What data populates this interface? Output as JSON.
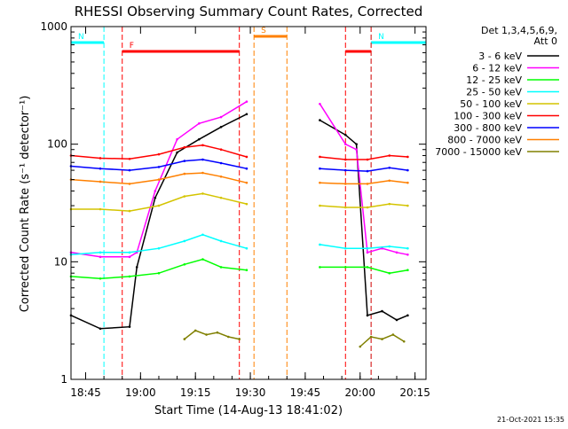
{
  "chart_data": {
    "type": "line",
    "title": "RHESSI Observing Summary Count Rates, Corrected",
    "xlabel": "Start Time (14-Aug-13 18:41:02)",
    "ylabel": "Corrected Count Rate (s⁻¹ detector⁻¹)",
    "yscale": "log",
    "ylim": [
      1,
      1000
    ],
    "xlim": [
      "18:41",
      "20:18"
    ],
    "x_ticks": [
      "18:45",
      "19:00",
      "19:15",
      "19:30",
      "19:45",
      "20:00",
      "20:15"
    ],
    "y_ticks": [
      "1",
      "10",
      "100",
      "1000"
    ],
    "legend_header": [
      "Det 1,3,4,5,6,9,",
      "Att 0"
    ],
    "legend_position": "right",
    "timestamp": "21-Oct-2021 15:35",
    "series": [
      {
        "name": "3 - 6 keV",
        "color": "#000000",
        "x": [
          "18:41",
          "18:49",
          "18:57",
          "18:59",
          "19:04",
          "19:10",
          "19:16",
          "19:22",
          "19:29",
          "19:49",
          "19:56",
          "19:59",
          "20:02",
          "20:06",
          "20:10",
          "20:13"
        ],
        "values": [
          3.5,
          2.7,
          2.8,
          9,
          35,
          85,
          110,
          140,
          180,
          160,
          120,
          100,
          3.5,
          3.8,
          3.2,
          3.5
        ]
      },
      {
        "name": "6 - 12 keV",
        "color": "#ff00ff",
        "x": [
          "18:41",
          "18:49",
          "18:57",
          "18:59",
          "19:04",
          "19:10",
          "19:16",
          "19:22",
          "19:29",
          "19:49",
          "19:56",
          "19:59",
          "20:02",
          "20:06",
          "20:10",
          "20:13"
        ],
        "values": [
          12,
          11,
          11,
          12,
          40,
          110,
          150,
          170,
          230,
          220,
          100,
          90,
          12,
          13,
          12,
          11.5
        ]
      },
      {
        "name": "12 - 25 keV",
        "color": "#00ff00",
        "x": [
          "18:41",
          "18:49",
          "18:57",
          "19:05",
          "19:12",
          "19:17",
          "19:22",
          "19:29",
          "19:49",
          "19:56",
          "20:02",
          "20:08",
          "20:13"
        ],
        "values": [
          7.5,
          7.2,
          7.5,
          8,
          9.5,
          10.5,
          9,
          8.5,
          9,
          9,
          9,
          8,
          8.5
        ]
      },
      {
        "name": "25 - 50 keV",
        "color": "#00ffff",
        "x": [
          "18:41",
          "18:49",
          "18:57",
          "19:05",
          "19:12",
          "19:17",
          "19:22",
          "19:29",
          "19:49",
          "19:56",
          "20:02",
          "20:08",
          "20:13"
        ],
        "values": [
          11.5,
          12,
          12,
          13,
          15,
          17,
          15,
          13,
          14,
          13,
          13,
          13.5,
          13
        ]
      },
      {
        "name": "50 - 100 keV",
        "color": "#d4c400",
        "x": [
          "18:41",
          "18:49",
          "18:57",
          "19:05",
          "19:12",
          "19:17",
          "19:22",
          "19:29",
          "19:49",
          "19:56",
          "20:02",
          "20:08",
          "20:13"
        ],
        "values": [
          28,
          28,
          27,
          30,
          36,
          38,
          35,
          31,
          30,
          29,
          29,
          31,
          30
        ]
      },
      {
        "name": "100 - 300 keV",
        "color": "#ff0000",
        "x": [
          "18:41",
          "18:49",
          "18:57",
          "19:05",
          "19:12",
          "19:17",
          "19:22",
          "19:29",
          "19:49",
          "19:56",
          "20:02",
          "20:08",
          "20:13"
        ],
        "values": [
          80,
          76,
          75,
          82,
          94,
          98,
          90,
          78,
          78,
          74,
          74,
          80,
          78
        ]
      },
      {
        "name": "300 - 800 keV",
        "color": "#0000ff",
        "x": [
          "18:41",
          "18:49",
          "18:57",
          "19:05",
          "19:12",
          "19:17",
          "19:22",
          "19:29",
          "19:49",
          "19:56",
          "20:02",
          "20:08",
          "20:13"
        ],
        "values": [
          65,
          62,
          60,
          64,
          72,
          74,
          69,
          62,
          62,
          60,
          59,
          63,
          60
        ]
      },
      {
        "name": "800 - 7000 keV",
        "color": "#ff8000",
        "x": [
          "18:41",
          "18:49",
          "18:57",
          "19:05",
          "19:12",
          "19:17",
          "19:22",
          "19:29",
          "19:49",
          "19:56",
          "20:02",
          "20:08",
          "20:13"
        ],
        "values": [
          50,
          48,
          46,
          50,
          56,
          57,
          53,
          47,
          47,
          46,
          46,
          49,
          47
        ]
      },
      {
        "name": "7000 - 15000 keV",
        "color": "#808000",
        "x": [
          "19:12",
          "19:15",
          "19:18",
          "19:21",
          "19:24",
          "19:27",
          "20:00",
          "20:03",
          "20:06",
          "20:09",
          "20:12"
        ],
        "values": [
          2.2,
          2.6,
          2.4,
          2.5,
          2.3,
          2.2,
          1.9,
          2.3,
          2.2,
          2.4,
          2.1
        ]
      }
    ],
    "annotations": {
      "night_markers": [
        {
          "label": "N",
          "from": "18:41",
          "to": "18:50",
          "color": "#00ffff"
        },
        {
          "label": "N",
          "from": "20:03",
          "to": "20:18",
          "color": "#00ffff"
        }
      ],
      "flare_markers": [
        {
          "label": "F",
          "from": "18:55",
          "to": "19:27",
          "color": "#ff0000"
        },
        {
          "label": "",
          "from": "19:56",
          "to": "20:03",
          "color": "#ff0000"
        }
      ],
      "saa_markers": [
        {
          "label": "S",
          "from": "19:31",
          "to": "19:40",
          "color": "#ff8000"
        }
      ]
    }
  }
}
